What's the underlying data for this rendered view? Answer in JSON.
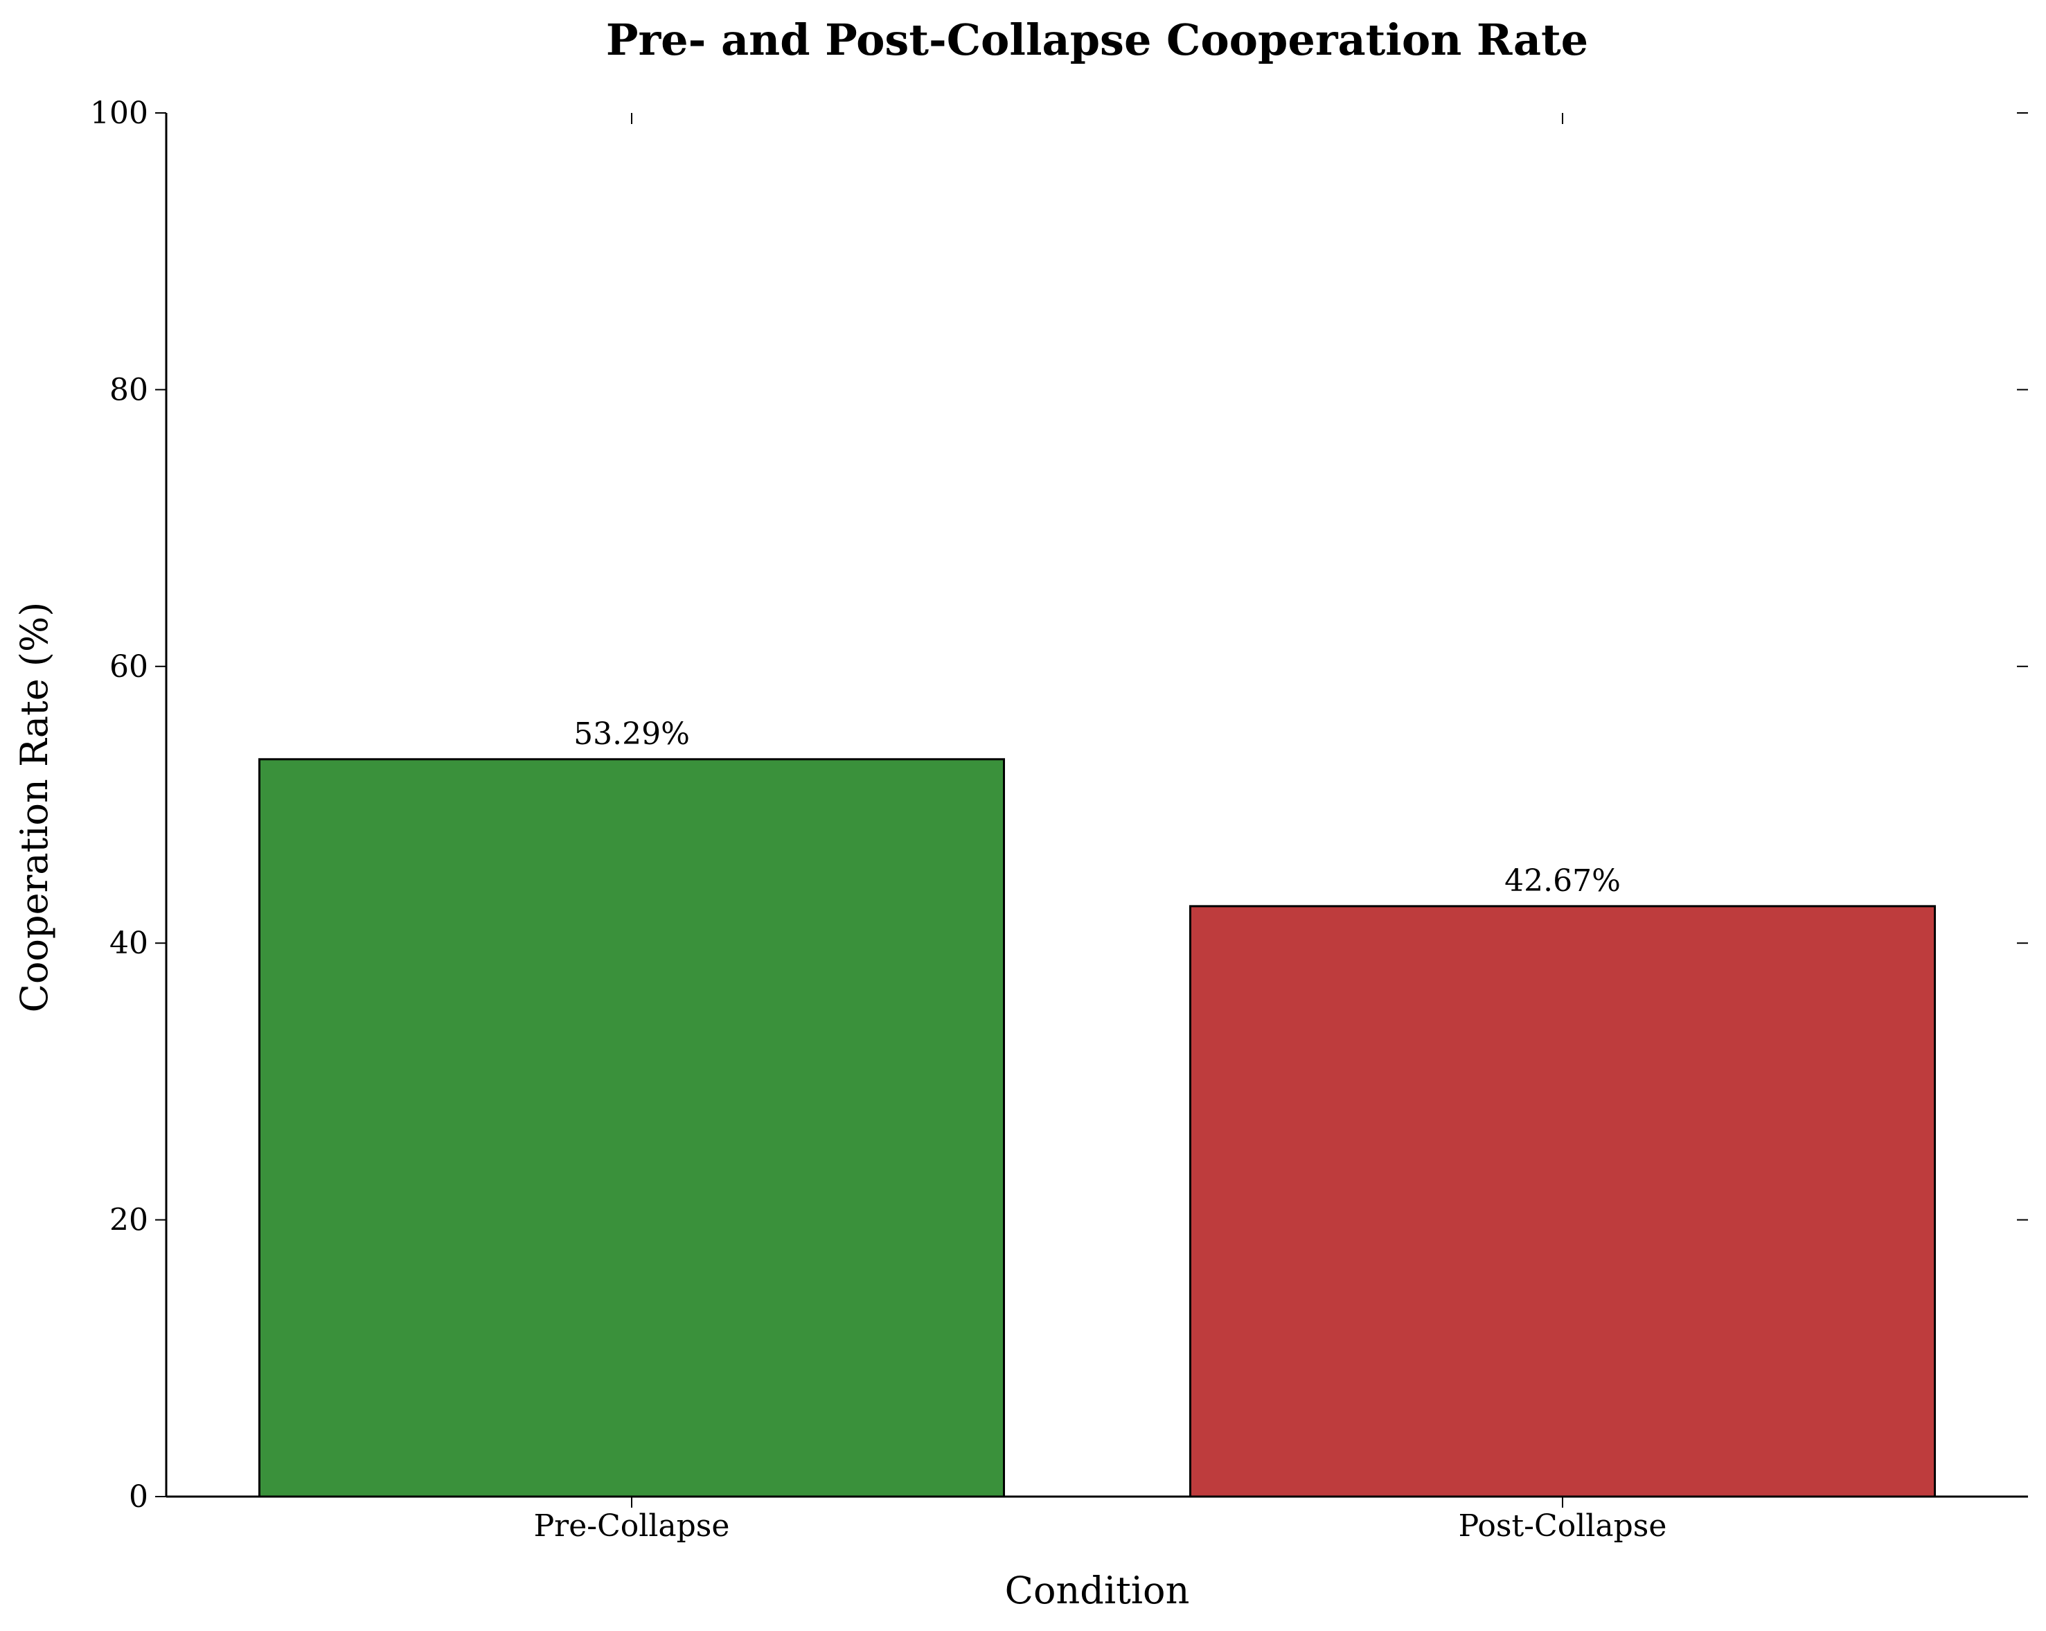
{
  "chart_data": {
    "type": "bar",
    "title": "Pre- and Post-Collapse Cooperation Rate",
    "xlabel": "Condition",
    "ylabel": "Cooperation Rate (%)",
    "categories": [
      "Pre-Collapse",
      "Post-Collapse"
    ],
    "values": [
      53.29,
      42.67
    ],
    "value_labels": [
      "53.29%",
      "42.67%"
    ],
    "colors": [
      "#3a913b",
      "#be3c3d"
    ],
    "ylim": [
      0,
      100
    ],
    "yticks": [
      0,
      20,
      40,
      60,
      80,
      100
    ],
    "ytick_labels": [
      "0",
      "20",
      "40",
      "60",
      "80",
      "100"
    ],
    "grid": false,
    "legend": false
  }
}
